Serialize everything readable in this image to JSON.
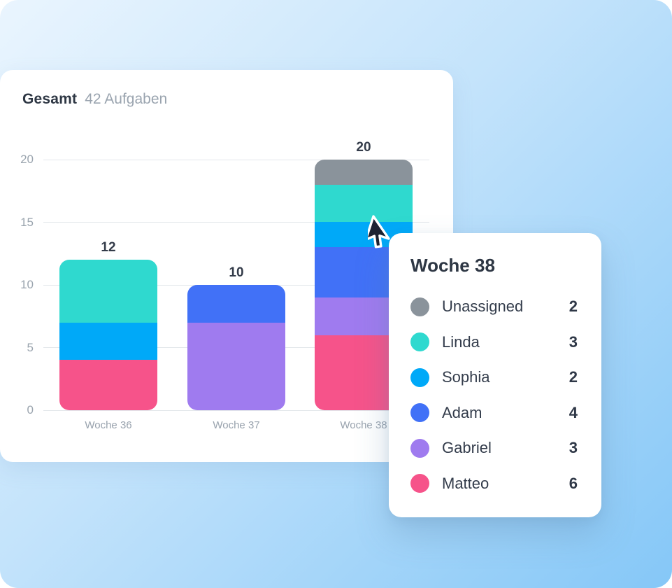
{
  "card": {
    "title": "Gesamt",
    "subtitle": "42 Aufgaben"
  },
  "chart_data": {
    "type": "bar",
    "stacked": true,
    "title": "Gesamt",
    "subtitle": "42 Aufgaben",
    "categories": [
      "Woche 36",
      "Woche 37",
      "Woche 38"
    ],
    "series": [
      {
        "name": "Matteo",
        "color": "#F6538A",
        "values": [
          4,
          0,
          6
        ]
      },
      {
        "name": "Gabriel",
        "color": "#9F7BEF",
        "values": [
          0,
          7,
          3
        ]
      },
      {
        "name": "Adam",
        "color": "#4171F7",
        "values": [
          0,
          3,
          4
        ]
      },
      {
        "name": "Sophia",
        "color": "#00A9F8",
        "values": [
          3,
          0,
          2
        ]
      },
      {
        "name": "Linda",
        "color": "#2FD9CF",
        "values": [
          5,
          0,
          3
        ]
      },
      {
        "name": "Unassigned",
        "color": "#8A939B",
        "values": [
          0,
          0,
          2
        ]
      }
    ],
    "totals": [
      12,
      10,
      20
    ],
    "y_ticks": [
      0,
      5,
      10,
      15,
      20
    ],
    "ylim": [
      0,
      20
    ],
    "grid": true,
    "legend_position": "tooltip-popup"
  },
  "tooltip": {
    "title": "Woche 38",
    "rows": [
      {
        "name": "Unassigned",
        "value": "2",
        "color": "#8A939B"
      },
      {
        "name": "Linda",
        "value": "3",
        "color": "#2FD9CF"
      },
      {
        "name": "Sophia",
        "value": "2",
        "color": "#00A9F8"
      },
      {
        "name": "Adam",
        "value": "4",
        "color": "#4171F7"
      },
      {
        "name": "Gabriel",
        "value": "3",
        "color": "#9F7BEF"
      },
      {
        "name": "Matteo",
        "value": "6",
        "color": "#F6538A"
      }
    ]
  },
  "colors": {
    "background_from": "#EAF5FE",
    "background_to": "#85C7F7",
    "card": "#FFFFFF",
    "gridline": "#E3E7EB",
    "text_dark": "#2E3744",
    "text_muted": "#98A2AD",
    "cursor": "#1C2232"
  }
}
